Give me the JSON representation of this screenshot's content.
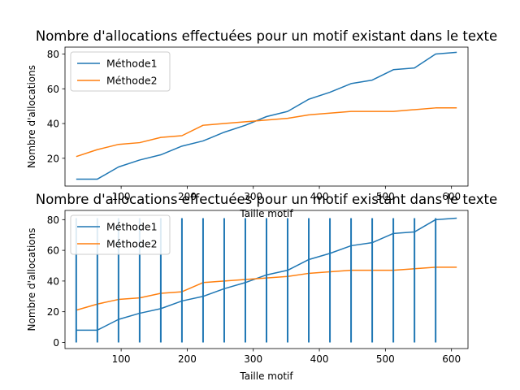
{
  "chart_data": [
    {
      "type": "line",
      "title": "Nombre d'allocations effectuées pour un motif existant dans le texte",
      "xlabel": "Taille motif",
      "ylabel": "Nombre d'allocations",
      "xlim": [
        15,
        625
      ],
      "ylim": [
        4,
        84
      ],
      "xticks": [
        100,
        200,
        300,
        400,
        500,
        600
      ],
      "yticks": [
        20,
        40,
        60,
        80
      ],
      "legend_position": "top-left",
      "x": [
        32,
        64,
        96,
        128,
        160,
        192,
        224,
        256,
        288,
        320,
        352,
        384,
        416,
        448,
        480,
        512,
        544,
        576,
        608
      ],
      "series": [
        {
          "name": "Méthode1",
          "color": "#1f77b4",
          "values": [
            8,
            8,
            15,
            19,
            22,
            27,
            30,
            35,
            39,
            44,
            47,
            54,
            58,
            63,
            65,
            71,
            72,
            80,
            81
          ]
        },
        {
          "name": "Méthode2",
          "color": "#ff7f0e",
          "values": [
            21,
            25,
            28,
            29,
            32,
            33,
            39,
            40,
            41,
            42,
            43,
            45,
            46,
            47,
            47,
            47,
            48,
            49,
            49
          ]
        }
      ]
    },
    {
      "type": "line",
      "title": "Nombre d'allocations effectuées pour un motif existant dans le texte",
      "xlabel": "Taille motif",
      "ylabel": "Nombre d'allocations",
      "xlim": [
        15,
        625
      ],
      "ylim": [
        -4,
        86
      ],
      "xticks": [
        100,
        200,
        300,
        400,
        500,
        600
      ],
      "yticks": [
        0,
        20,
        40,
        60,
        80
      ],
      "legend_position": "top-left",
      "vlines": {
        "color": "#1f77b4",
        "ymin": 0,
        "ymax": 81,
        "x": [
          32,
          64,
          96,
          128,
          160,
          192,
          224,
          256,
          288,
          320,
          352,
          384,
          416,
          448,
          480,
          512,
          544,
          576
        ]
      },
      "x": [
        32,
        64,
        96,
        128,
        160,
        192,
        224,
        256,
        288,
        320,
        352,
        384,
        416,
        448,
        480,
        512,
        544,
        576,
        608
      ],
      "series": [
        {
          "name": "Méthode1",
          "color": "#1f77b4",
          "values": [
            8,
            8,
            15,
            19,
            22,
            27,
            30,
            35,
            39,
            44,
            47,
            54,
            58,
            63,
            65,
            71,
            72,
            80,
            81
          ]
        },
        {
          "name": "Méthode2",
          "color": "#ff7f0e",
          "values": [
            21,
            25,
            28,
            29,
            32,
            33,
            39,
            40,
            41,
            42,
            43,
            45,
            46,
            47,
            47,
            47,
            48,
            49,
            49
          ]
        }
      ]
    }
  ]
}
